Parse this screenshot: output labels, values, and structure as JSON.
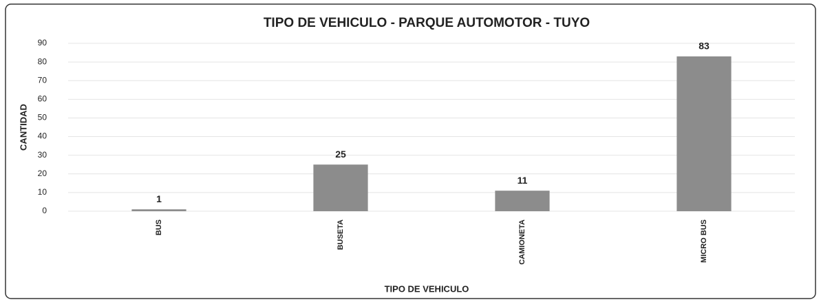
{
  "chart_data": {
    "type": "bar",
    "title": "TIPO DE VEHICULO - PARQUE AUTOMOTOR - TUYO",
    "x_label": "TIPO DE VEHICULO",
    "y_label": "CANTIDAD",
    "categories": [
      "BUS",
      "BUSETA",
      "CAMIONETA",
      "MICRO BUS"
    ],
    "values": [
      1,
      25,
      11,
      83
    ],
    "color": "#8c8c8c",
    "ylim": [
      0,
      90
    ],
    "yticks": [
      0,
      10,
      20,
      30,
      40,
      50,
      60,
      70,
      80,
      90
    ],
    "grid": true
  }
}
